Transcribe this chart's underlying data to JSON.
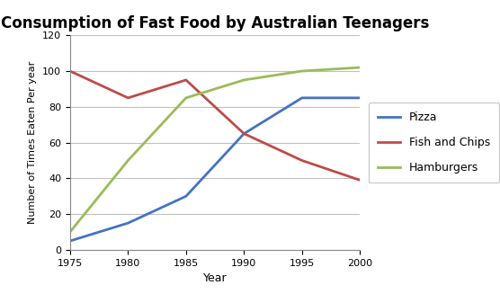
{
  "title": "Consumption of Fast Food by Australian Teenagers",
  "xlabel": "Year",
  "ylabel": "Number of Times Eaten Per year",
  "years": [
    1975,
    1980,
    1985,
    1990,
    1995,
    2000
  ],
  "pizza": [
    5,
    15,
    30,
    65,
    85,
    85
  ],
  "fish_and_chips": [
    100,
    85,
    95,
    65,
    50,
    39
  ],
  "hamburgers": [
    10,
    50,
    85,
    95,
    100,
    102
  ],
  "pizza_color": "#4472C4",
  "fish_color": "#BE4B48",
  "hamburgers_color": "#9BBB59",
  "ylim": [
    0,
    120
  ],
  "yticks": [
    0,
    20,
    40,
    60,
    80,
    100,
    120
  ],
  "xticks": [
    1975,
    1980,
    1985,
    1990,
    1995,
    2000
  ],
  "legend_labels": [
    "Pizza",
    "Fish and Chips",
    "Hamburgers"
  ],
  "line_width": 2.0,
  "title_fontsize": 12,
  "label_fontsize": 9,
  "tick_fontsize": 8,
  "background_color": "#FFFFFF",
  "grid_color": "#C0C0C0"
}
